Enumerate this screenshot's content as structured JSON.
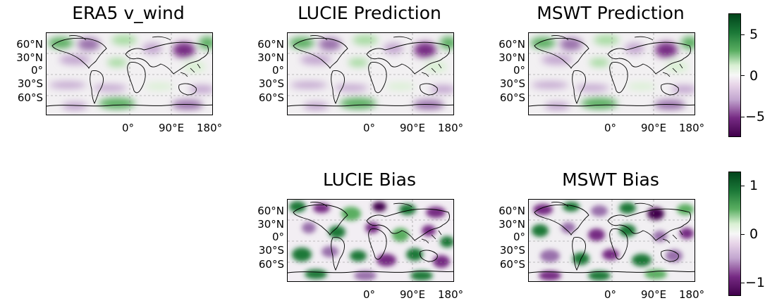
{
  "panels": [
    {
      "id": "era5",
      "title": "ERA5 v_wind",
      "kind": "field"
    },
    {
      "id": "lucie-pred",
      "title": "LUCIE Prediction",
      "kind": "field"
    },
    {
      "id": "mswt-pred",
      "title": "MSWT Prediction",
      "kind": "field"
    },
    {
      "id": "lucie-bias",
      "title": "LUCIE Bias",
      "kind": "bias"
    },
    {
      "id": "mswt-bias",
      "title": "MSWT Bias",
      "kind": "bias"
    }
  ],
  "lat_ticks": [
    "60°N",
    "30°N",
    "0°",
    "30°S",
    "60°S"
  ],
  "lon_ticks": [
    "0°",
    "90°E",
    "180°"
  ],
  "colorbars": [
    {
      "id": "top",
      "colormap": "PRGn",
      "ticks": [
        "5",
        "0",
        "−5"
      ],
      "range": [
        -7.5,
        7.5
      ]
    },
    {
      "id": "bottom",
      "colormap": "PRGn",
      "ticks": [
        "1",
        "0",
        "−1"
      ],
      "range": [
        -1.25,
        1.25
      ]
    }
  ],
  "colors": {
    "green_dark": "#00441b",
    "green": "#5aae61",
    "light": "#f7f7f7",
    "purple": "#9970ab",
    "purple_dark": "#40004b"
  }
}
